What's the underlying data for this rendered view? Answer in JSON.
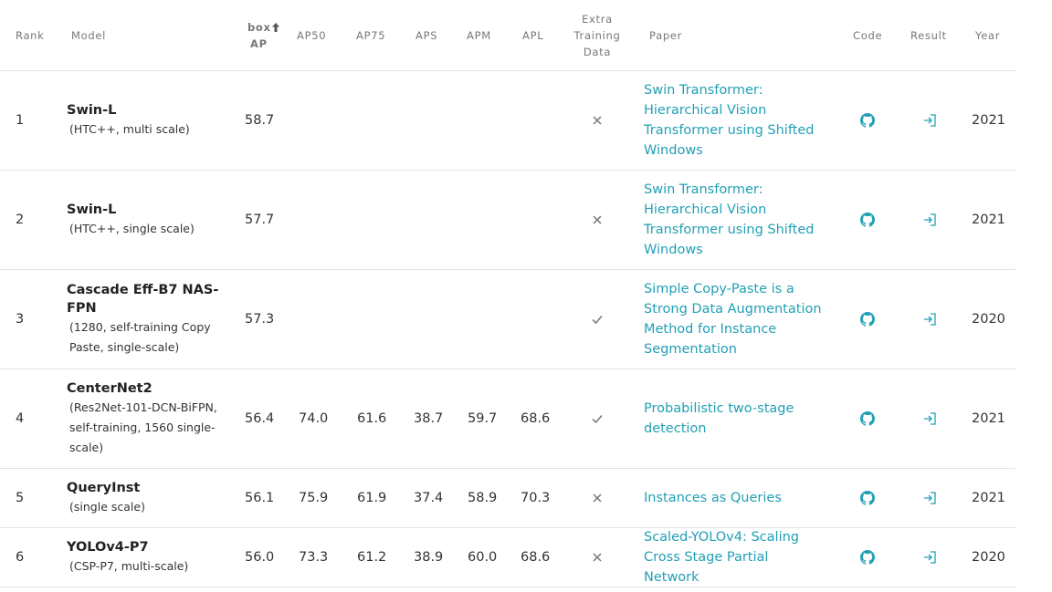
{
  "headers": {
    "rank": "Rank",
    "model": "Model",
    "box_ap_1": "box",
    "box_ap_2": "AP",
    "ap50": "AP50",
    "ap75": "AP75",
    "aps": "APS",
    "apm": "APM",
    "apl": "APL",
    "extra_1": "Extra",
    "extra_2": "Training",
    "extra_3": "Data",
    "paper": "Paper",
    "code": "Code",
    "result": "Result",
    "year": "Year"
  },
  "rows": [
    {
      "rank": "1",
      "model": "Swin-L",
      "desc": "(HTC++, multi scale)",
      "box_ap": "58.7",
      "ap50": "",
      "ap75": "",
      "aps": "",
      "apm": "",
      "apl": "",
      "extra": "cross",
      "paper": "Swin Transformer: Hierarchical Vision Transformer using Shifted Windows",
      "year": "2021"
    },
    {
      "rank": "2",
      "model": "Swin-L",
      "desc": "(HTC++, single scale)",
      "box_ap": "57.7",
      "ap50": "",
      "ap75": "",
      "aps": "",
      "apm": "",
      "apl": "",
      "extra": "cross",
      "paper": "Swin Transformer: Hierarchical Vision Transformer using Shifted Windows",
      "year": "2021"
    },
    {
      "rank": "3",
      "model": "Cascade Eff-B7 NAS-FPN",
      "desc": "(1280, self-training Copy Paste, single-scale)",
      "box_ap": "57.3",
      "ap50": "",
      "ap75": "",
      "aps": "",
      "apm": "",
      "apl": "",
      "extra": "check",
      "paper": "Simple Copy-Paste is a Strong Data Augmentation Method for Instance Segmentation",
      "year": "2020"
    },
    {
      "rank": "4",
      "model": "CenterNet2",
      "desc": "(Res2Net-101-DCN-BiFPN, self-training, 1560 single-scale)",
      "box_ap": "56.4",
      "ap50": "74.0",
      "ap75": "61.6",
      "aps": "38.7",
      "apm": "59.7",
      "apl": "68.6",
      "extra": "check",
      "paper": "Probabilistic two-stage detection",
      "year": "2021"
    },
    {
      "rank": "5",
      "model": "QueryInst",
      "desc": "(single scale)",
      "box_ap": "56.1",
      "ap50": "75.9",
      "ap75": "61.9",
      "aps": "37.4",
      "apm": "58.9",
      "apl": "70.3",
      "extra": "cross",
      "paper": "Instances as Queries",
      "year": "2021"
    },
    {
      "rank": "6",
      "model": "YOLOv4-P7",
      "desc": "(CSP-P7, multi-scale)",
      "box_ap": "56.0",
      "ap50": "73.3",
      "ap75": "61.2",
      "aps": "38.9",
      "apm": "60.0",
      "apl": "68.6",
      "extra": "cross",
      "paper": "Scaled-YOLOv4: Scaling Cross Stage Partial Network",
      "year": "2020"
    }
  ],
  "colors": {
    "link": "#21a0b5",
    "icon": "#21a0b5",
    "mark": "#777777",
    "border": "#e3e3e3"
  },
  "icons": {
    "code": "github-icon",
    "result": "login-arrow-icon",
    "extra_yes": "check-icon",
    "extra_no": "cross-icon"
  }
}
